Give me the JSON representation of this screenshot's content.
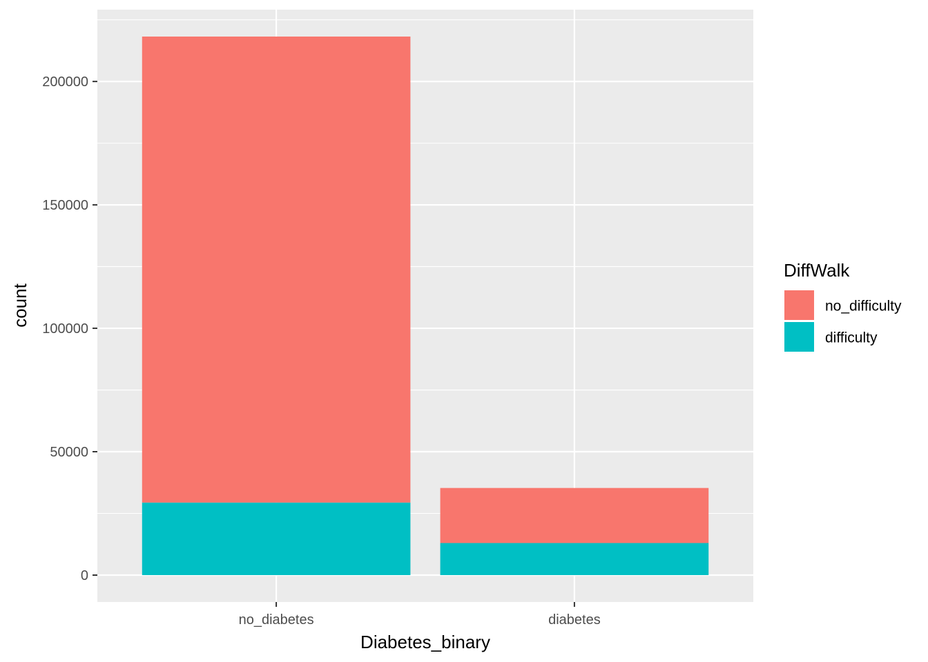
{
  "chart_data": {
    "type": "bar",
    "stacked": true,
    "categories": [
      "no_diabetes",
      "diabetes"
    ],
    "series": [
      {
        "name": "no_difficulty",
        "color": "#F8766D",
        "values": [
          188800,
          22300
        ]
      },
      {
        "name": "difficulty",
        "color": "#00BFC4",
        "values": [
          29400,
          13000
        ]
      }
    ],
    "xlabel": "Diabetes_binary",
    "ylabel": "count",
    "ylim": [
      -10900,
      229100
    ],
    "yticks": [
      0,
      50000,
      100000,
      150000,
      200000
    ],
    "ytick_labels": [
      "0",
      "50000",
      "100000",
      "150000",
      "200000"
    ],
    "grid": true,
    "panel_background": "#EBEBEB",
    "legend": {
      "title": "DiffWalk",
      "placement": "right",
      "entries": [
        "no_difficulty",
        "difficulty"
      ]
    }
  }
}
